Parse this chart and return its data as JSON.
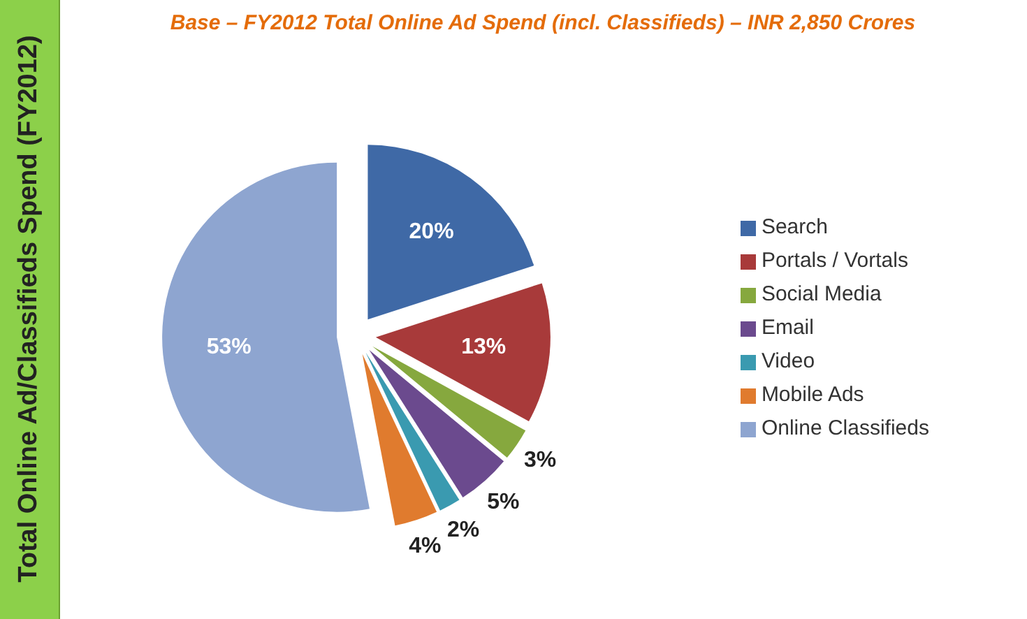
{
  "chart_data": {
    "type": "pie",
    "title": "Base – FY2012 Total Online Ad Spend (incl. Classifieds) – INR 2,850 Crores",
    "ylabel": "Total Online Ad/Classifieds  Spend (FY2012)",
    "categories": [
      "Search",
      "Portals / Vortals",
      "Social Media",
      "Email",
      "Video",
      "Mobile Ads",
      "Online Classifieds"
    ],
    "values": [
      20,
      13,
      3,
      5,
      2,
      4,
      53
    ],
    "value_labels": [
      "20%",
      "13%",
      "3%",
      "5%",
      "2%",
      "4%",
      "53%"
    ],
    "colors": [
      "#3f69a6",
      "#a83a3a",
      "#86a83e",
      "#6b4a8e",
      "#3a9ab0",
      "#e07b2e",
      "#8ea5d0"
    ],
    "legend": "right"
  }
}
